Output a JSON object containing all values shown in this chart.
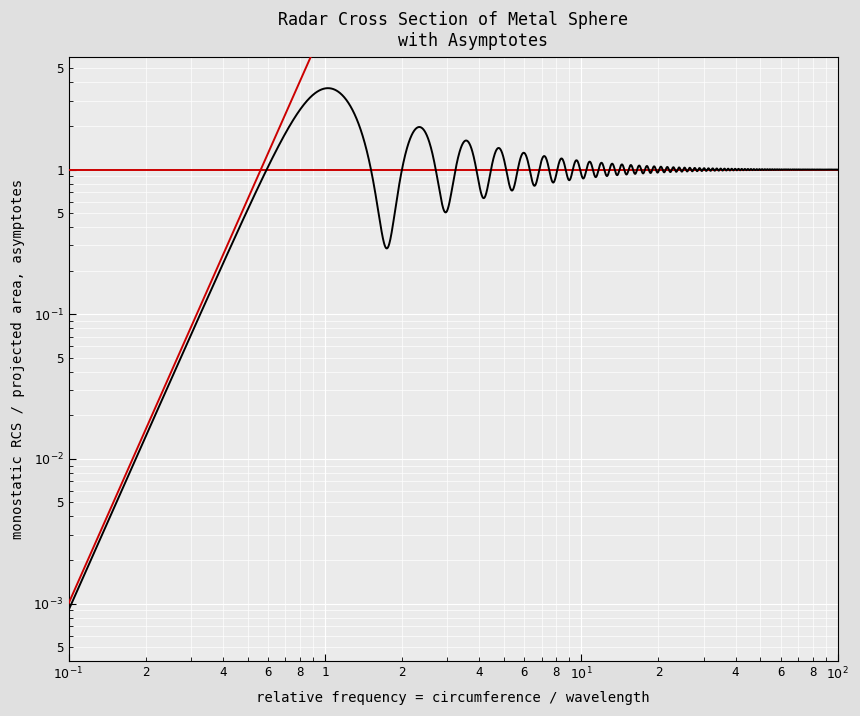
{
  "title": "Radar Cross Section of Metal Sphere\n    with Asymptotes",
  "xlabel": "relative frequency = circumference / wavelength",
  "ylabel": "monostatic RCS / projected area, asymptotes",
  "xlim": [
    0.1,
    100.0
  ],
  "ylim": [
    0.0004,
    6.0
  ],
  "background_color": "#e0e0e0",
  "plot_bg_color": "#ebebeb",
  "rcs_color": "#000000",
  "asymptote_color": "#cc0000",
  "grid_color": "#ffffff",
  "title_fontsize": 12,
  "label_fontsize": 10,
  "tick_fontsize": 9,
  "line_width": 1.4
}
